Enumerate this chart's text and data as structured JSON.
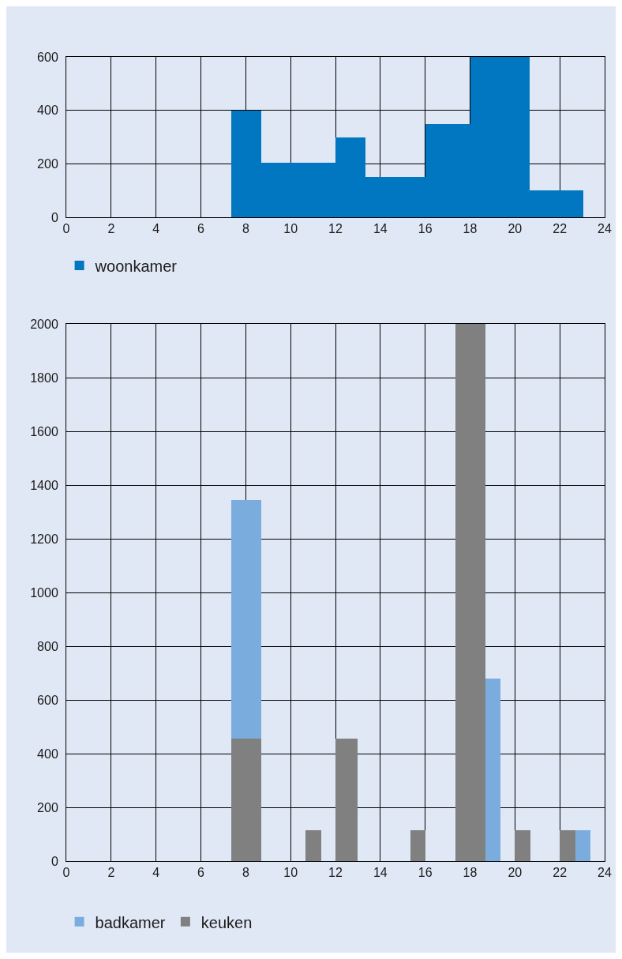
{
  "chart_data": [
    {
      "type": "histogram",
      "bins": [
        7.35,
        8.7,
        12,
        13.35,
        16,
        18,
        20.67,
        23.05
      ],
      "series": [
        {
          "name": "woonkamer",
          "color": "#0077c0",
          "values": [
            400,
            205,
            300,
            150,
            350,
            600,
            100
          ]
        }
      ],
      "xlim": [
        0,
        24
      ],
      "xticks": [
        0,
        2,
        4,
        6,
        8,
        10,
        12,
        14,
        16,
        18,
        20,
        22,
        24
      ],
      "ylim": [
        0,
        600
      ],
      "yticks": [
        0,
        200,
        400,
        600
      ],
      "grid": true,
      "legend": "bottom"
    },
    {
      "type": "histogram",
      "bins": [
        7.35,
        8.7,
        10.65,
        11.35,
        12,
        13,
        15.35,
        16,
        17.35,
        18.7,
        19.35,
        20,
        20.7,
        22,
        22.7,
        23.35
      ],
      "series": [
        {
          "name": "badkamer",
          "color": "#7aaddd",
          "values": [
            1345,
            null,
            null,
            null,
            null,
            null,
            null,
            null,
            null,
            680,
            null,
            null,
            null,
            null,
            115
          ]
        },
        {
          "name": "keuken",
          "color": "#808080",
          "values": [
            455,
            null,
            115,
            null,
            455,
            null,
            115,
            null,
            2000,
            null,
            null,
            115,
            null,
            115,
            null
          ]
        }
      ],
      "xlim": [
        0,
        24
      ],
      "xticks": [
        0,
        2,
        4,
        6,
        8,
        10,
        12,
        14,
        16,
        18,
        20,
        22,
        24
      ],
      "ylim": [
        0,
        2000
      ],
      "yticks": [
        0,
        200,
        400,
        600,
        800,
        1000,
        1200,
        1400,
        1600,
        1800,
        2000
      ],
      "grid": true,
      "legend": "bottom"
    }
  ]
}
